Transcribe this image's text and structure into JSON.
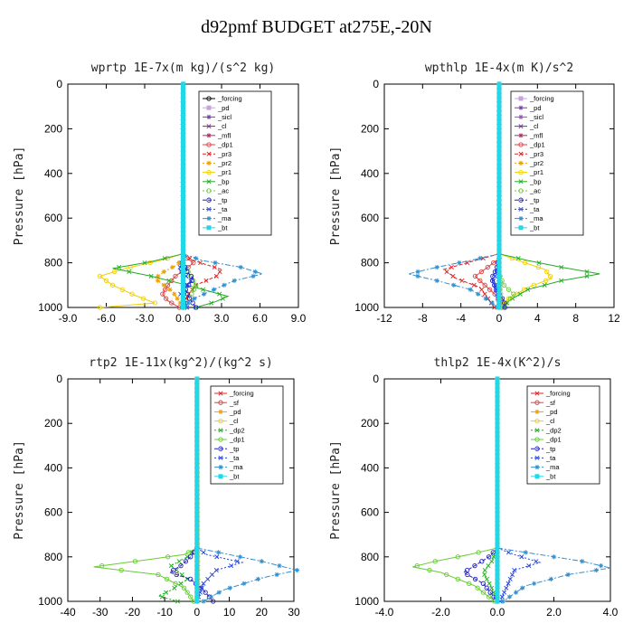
{
  "figure_title": "d92pmf  BUDGET at275E,-20N",
  "chart_data": [
    {
      "type": "line",
      "title": "wprtp  1E-7x(m kg)/(s^2 kg)",
      "ylabel": "Pressure [hPa]",
      "xlim": [
        -9,
        9
      ],
      "ylim": [
        1000,
        0
      ],
      "xticks": [
        "-9.0",
        "-6.0",
        "-3.0",
        "0.0",
        "3.0",
        "6.0",
        "9.0"
      ],
      "xtick_values": [
        -9,
        -6,
        -3,
        0,
        3,
        6,
        9
      ],
      "yticks": [
        "0",
        "200",
        "400",
        "600",
        "800",
        "1000"
      ],
      "ytick_values": [
        0,
        200,
        400,
        600,
        800,
        1000
      ],
      "series": [
        {
          "name": "_forcing",
          "color": "#000000",
          "dash": "",
          "marker": "circle",
          "x": [
            0,
            0
          ],
          "p": [
            0,
            1000
          ]
        },
        {
          "name": "_pd",
          "color": "#c9a3e0",
          "dash": "",
          "marker": "square",
          "x": [
            0,
            0
          ],
          "p": [
            0,
            1000
          ]
        },
        {
          "name": "_sicl",
          "color": "#7a3fb5",
          "dash": "",
          "marker": "star",
          "x": [
            0,
            0
          ],
          "p": [
            0,
            1000
          ]
        },
        {
          "name": "_cl",
          "color": "#7a2b8c",
          "dash": "",
          "marker": "cross",
          "x": [
            0,
            0
          ],
          "p": [
            0,
            1000
          ]
        },
        {
          "name": "_mfl",
          "color": "#b03060",
          "dash": "",
          "marker": "star",
          "x": [
            0,
            0
          ],
          "p": [
            0,
            1000
          ]
        },
        {
          "name": "_dp1",
          "color": "#e04040",
          "dash": "",
          "marker": "circle",
          "x": [
            0,
            0.3,
            0.8,
            0.4,
            -0.6,
            -1.2,
            -1.6,
            -1.2,
            -0.3
          ],
          "p": [
            760,
            780,
            800,
            820,
            860,
            900,
            940,
            970,
            1000
          ]
        },
        {
          "name": "_pr3",
          "color": "#e02020",
          "dash": "4,2",
          "marker": "cross",
          "x": [
            0,
            0.8,
            3.0,
            2.6,
            1.0,
            0.3,
            0
          ],
          "p": [
            760,
            790,
            830,
            860,
            900,
            950,
            1000
          ]
        },
        {
          "name": "_pr2",
          "color": "#f0a000",
          "dash": "2,2",
          "marker": "star",
          "x": [
            0,
            -0.5,
            -1.5,
            -2.2,
            -0.8,
            0
          ],
          "p": [
            780,
            810,
            840,
            870,
            930,
            1000
          ]
        },
        {
          "name": "_pr1",
          "color": "#f0d000",
          "dash": "",
          "marker": "circle",
          "x": [
            0,
            -1.8,
            -4.5,
            -6.5,
            -5.5,
            -3.8,
            -2.2,
            -6.5
          ],
          "p": [
            760,
            790,
            825,
            860,
            900,
            945,
            980,
            1000
          ]
        },
        {
          "name": "_bp",
          "color": "#22aa22",
          "dash": "",
          "marker": "cross",
          "x": [
            0,
            -2.5,
            -5.5,
            -2.5,
            0.3,
            2.5,
            3.5,
            2.5,
            1.0
          ],
          "p": [
            760,
            795,
            825,
            860,
            900,
            935,
            950,
            975,
            1000
          ]
        },
        {
          "name": "_ac",
          "color": "#66cc33",
          "dash": "2,2",
          "marker": "circle",
          "x": [
            0,
            0.5,
            1.0,
            0.5,
            0
          ],
          "p": [
            800,
            850,
            900,
            960,
            1000
          ]
        },
        {
          "name": "_tp",
          "color": "#2020c0",
          "dash": "4,2",
          "marker": "circle",
          "x": [
            0,
            0.3,
            0.8,
            0.2,
            0.5,
            1.0
          ],
          "p": [
            800,
            840,
            870,
            920,
            960,
            1000
          ]
        },
        {
          "name": "_ta",
          "color": "#2040e0",
          "dash": "2,2",
          "marker": "cross",
          "x": [
            0,
            -0.3,
            0.6,
            -0.2,
            0.3
          ],
          "p": [
            780,
            830,
            880,
            940,
            1000
          ]
        },
        {
          "name": "_ma",
          "color": "#3090d0",
          "dash": "6,2,2,2",
          "marker": "star",
          "x": [
            0,
            1.5,
            4.5,
            6.2,
            4.0,
            2.0,
            0.5,
            0.2
          ],
          "p": [
            760,
            790,
            820,
            850,
            880,
            930,
            970,
            1000
          ]
        },
        {
          "name": "_bt",
          "color": "#20d8e8",
          "dash": "",
          "marker": "square",
          "x": [
            0,
            0
          ],
          "p": [
            0,
            1000
          ]
        }
      ]
    },
    {
      "type": "line",
      "title": "wpthlp  1E-4x(m K)/s^2",
      "ylabel": "Pressure [hPa]",
      "xlim": [
        -12,
        12
      ],
      "ylim": [
        1000,
        0
      ],
      "xticks": [
        "-12",
        "-8",
        "-4",
        "0",
        "4",
        "8",
        "12"
      ],
      "xtick_values": [
        -12,
        -8,
        -4,
        0,
        4,
        8,
        12
      ],
      "yticks": [
        "0",
        "200",
        "400",
        "600",
        "800",
        "1000"
      ],
      "ytick_values": [
        0,
        200,
        400,
        600,
        800,
        1000
      ],
      "series": [
        {
          "name": "_forcing",
          "color": "#c9a3e0",
          "dash": "",
          "marker": "square",
          "x": [
            0,
            0
          ],
          "p": [
            0,
            1000
          ]
        },
        {
          "name": "_pd",
          "color": "#7a3fb5",
          "dash": "",
          "marker": "star",
          "x": [
            0,
            0
          ],
          "p": [
            0,
            1000
          ]
        },
        {
          "name": "_sicl",
          "color": "#9a50c0",
          "dash": "",
          "marker": "star",
          "x": [
            0,
            0
          ],
          "p": [
            0,
            1000
          ]
        },
        {
          "name": "_cl",
          "color": "#7a2b8c",
          "dash": "",
          "marker": "cross",
          "x": [
            0,
            0
          ],
          "p": [
            0,
            1000
          ]
        },
        {
          "name": "_mfl",
          "color": "#b03060",
          "dash": "",
          "marker": "star",
          "x": [
            0,
            0
          ],
          "p": [
            0,
            1000
          ]
        },
        {
          "name": "_dp1",
          "color": "#e04040",
          "dash": "",
          "marker": "circle",
          "x": [
            0,
            -1.2,
            -2.5,
            -1.5,
            -0.2,
            0.3
          ],
          "p": [
            780,
            820,
            860,
            900,
            950,
            1000
          ]
        },
        {
          "name": "_pr3",
          "color": "#e02020",
          "dash": "4,2",
          "marker": "cross",
          "x": [
            0,
            -2.5,
            -5.8,
            -4.5,
            -2.0,
            -0.5
          ],
          "p": [
            760,
            790,
            830,
            870,
            910,
            1000
          ]
        },
        {
          "name": "_pr2",
          "color": "#f0a000",
          "dash": "2,2",
          "marker": "star",
          "x": [
            0,
            0,
            0.2,
            0
          ],
          "p": [
            760,
            850,
            950,
            1000
          ]
        },
        {
          "name": "_pr1",
          "color": "#f0d000",
          "dash": "",
          "marker": "circle",
          "x": [
            0,
            2.0,
            4.8,
            5.5,
            3.0,
            1.0,
            0.2
          ],
          "p": [
            760,
            790,
            830,
            870,
            910,
            960,
            1000
          ]
        },
        {
          "name": "_bp",
          "color": "#22aa22",
          "dash": "",
          "marker": "cross",
          "x": [
            0,
            3.0,
            6.5,
            10.5,
            6.5,
            3.0,
            1.0,
            0.5
          ],
          "p": [
            760,
            790,
            820,
            850,
            880,
            920,
            970,
            1000
          ]
        },
        {
          "name": "_ac",
          "color": "#66cc33",
          "dash": "2,2",
          "marker": "circle",
          "x": [
            0,
            0.5,
            1.5,
            1.0,
            0.2
          ],
          "p": [
            850,
            900,
            940,
            970,
            1000
          ]
        },
        {
          "name": "_tp",
          "color": "#2020c0",
          "dash": "4,2",
          "marker": "circle",
          "x": [
            0,
            -0.3,
            -0.8,
            -0.3,
            0.5,
            0.6
          ],
          "p": [
            780,
            830,
            870,
            920,
            970,
            1000
          ]
        },
        {
          "name": "_ta",
          "color": "#2040e0",
          "dash": "2,2",
          "marker": "cross",
          "x": [
            0,
            -0.2,
            -0.6,
            -0.2,
            0
          ],
          "p": [
            780,
            830,
            880,
            940,
            1000
          ]
        },
        {
          "name": "_ma",
          "color": "#3090d0",
          "dash": "6,2,2,2",
          "marker": "star",
          "x": [
            0,
            -3.0,
            -6.5,
            -9.5,
            -6.5,
            -3.0,
            -1.0,
            -0.2
          ],
          "p": [
            760,
            790,
            820,
            850,
            880,
            920,
            970,
            1000
          ]
        },
        {
          "name": "_bt",
          "color": "#20d8e8",
          "dash": "",
          "marker": "square",
          "x": [
            0,
            0
          ],
          "p": [
            0,
            1000
          ]
        }
      ]
    },
    {
      "type": "line",
      "title": "rtp2  1E-11x(kg^2)/(kg^2 s)",
      "ylabel": "Pressure [hPa]",
      "xlim": [
        -40,
        30
      ],
      "ylim": [
        1000,
        0
      ],
      "xticks": [
        "-40",
        "-30",
        "-20",
        "-10",
        "0",
        "10",
        "20",
        "30"
      ],
      "xtick_values": [
        -40,
        -30,
        -20,
        -10,
        0,
        10,
        20,
        30
      ],
      "yticks": [
        "0",
        "200",
        "400",
        "600",
        "800",
        "1000"
      ],
      "ytick_values": [
        0,
        200,
        400,
        600,
        800,
        1000
      ],
      "series": [
        {
          "name": "_forcing",
          "color": "#e02020",
          "dash": "",
          "marker": "cross",
          "x": [
            0,
            0
          ],
          "p": [
            0,
            1000
          ]
        },
        {
          "name": "_sf",
          "color": "#e04040",
          "dash": "",
          "marker": "circle",
          "x": [
            0,
            0
          ],
          "p": [
            0,
            1000
          ]
        },
        {
          "name": "_pd",
          "color": "#f0a000",
          "dash": "",
          "marker": "star",
          "x": [
            0,
            0.3,
            0
          ],
          "p": [
            0,
            950,
            1000
          ]
        },
        {
          "name": "_cl",
          "color": "#f0d000",
          "dash": "",
          "marker": "circle",
          "x": [
            0,
            0
          ],
          "p": [
            0,
            1000
          ]
        },
        {
          "name": "_dp2",
          "color": "#22aa22",
          "dash": "2,2",
          "marker": "cross",
          "x": [
            0,
            -3.0,
            -8.0,
            -3.0,
            -8.0,
            -12.0,
            -6.0
          ],
          "p": [
            760,
            800,
            840,
            900,
            950,
            975,
            1000
          ]
        },
        {
          "name": "_dp1",
          "color": "#66cc33",
          "dash": "",
          "marker": "circle",
          "x": [
            0,
            -4.0,
            -14.0,
            -32.0,
            -12.0,
            -4.0,
            -1.0
          ],
          "p": [
            760,
            790,
            810,
            845,
            880,
            940,
            1000
          ]
        },
        {
          "name": "_tp",
          "color": "#2020c0",
          "dash": "4,2",
          "marker": "circle",
          "x": [
            0,
            -2.0,
            -5.0,
            -8.5,
            -2.0,
            2.0,
            5.0
          ],
          "p": [
            760,
            800,
            840,
            870,
            900,
            950,
            1000
          ]
        },
        {
          "name": "_ta",
          "color": "#2040e0",
          "dash": "2,2",
          "marker": "cross",
          "x": [
            0,
            3.0,
            14.0,
            6.0,
            2.0,
            0
          ],
          "p": [
            760,
            790,
            825,
            860,
            920,
            1000
          ]
        },
        {
          "name": "_ma",
          "color": "#3090d0",
          "dash": "6,2,2,2",
          "marker": "star",
          "x": [
            0,
            10.0,
            20.0,
            31.0,
            20.0,
            8.0,
            2.0
          ],
          "p": [
            760,
            790,
            820,
            860,
            895,
            950,
            1000
          ]
        },
        {
          "name": "_bt",
          "color": "#20d8e8",
          "dash": "",
          "marker": "square",
          "x": [
            0,
            0
          ],
          "p": [
            0,
            1000
          ]
        }
      ]
    },
    {
      "type": "line",
      "title": "thlp2  1E-4x(K^2)/s",
      "ylabel": "Pressure [hPa]",
      "xlim": [
        -4,
        4
      ],
      "ylim": [
        1000,
        0
      ],
      "xticks": [
        "-4.0",
        "-2.0",
        "0.0",
        "2.0",
        "4.0"
      ],
      "xtick_values": [
        -4,
        -2,
        0,
        2,
        4
      ],
      "yticks": [
        "0",
        "200",
        "400",
        "600",
        "800",
        "1000"
      ],
      "ytick_values": [
        0,
        200,
        400,
        600,
        800,
        1000
      ],
      "series": [
        {
          "name": "_forcing",
          "color": "#e02020",
          "dash": "",
          "marker": "cross",
          "x": [
            0,
            0
          ],
          "p": [
            0,
            1000
          ]
        },
        {
          "name": "_sf",
          "color": "#e04040",
          "dash": "",
          "marker": "circle",
          "x": [
            0,
            0
          ],
          "p": [
            0,
            1000
          ]
        },
        {
          "name": "_pd",
          "color": "#f0a000",
          "dash": "",
          "marker": "star",
          "x": [
            0,
            0
          ],
          "p": [
            0,
            1000
          ]
        },
        {
          "name": "_cl",
          "color": "#f0d000",
          "dash": "",
          "marker": "circle",
          "x": [
            0,
            0
          ],
          "p": [
            0,
            1000
          ]
        },
        {
          "name": "_dp2",
          "color": "#22aa22",
          "dash": "2,2",
          "marker": "cross",
          "x": [
            0,
            -0.2,
            -0.5,
            -0.2,
            0
          ],
          "p": [
            760,
            820,
            870,
            940,
            1000
          ]
        },
        {
          "name": "_dp1",
          "color": "#66cc33",
          "dash": "",
          "marker": "circle",
          "x": [
            0,
            -1.0,
            -2.2,
            -3.0,
            -2.0,
            -0.8,
            -0.1
          ],
          "p": [
            760,
            790,
            820,
            845,
            870,
            930,
            1000
          ]
        },
        {
          "name": "_tp",
          "color": "#2020c0",
          "dash": "4,2",
          "marker": "circle",
          "x": [
            0,
            -0.3,
            -0.8,
            -1.2,
            -0.5,
            0
          ],
          "p": [
            760,
            800,
            840,
            870,
            920,
            1000
          ]
        },
        {
          "name": "_ta",
          "color": "#2040e0",
          "dash": "2,2",
          "marker": "cross",
          "x": [
            0,
            0.6,
            1.5,
            0.6,
            0.1
          ],
          "p": [
            760,
            790,
            825,
            860,
            1000
          ]
        },
        {
          "name": "_ma",
          "color": "#3090d0",
          "dash": "6,2,2,2",
          "marker": "star",
          "x": [
            0,
            1.5,
            3.0,
            4.0,
            2.5,
            1.0,
            0.2
          ],
          "p": [
            760,
            790,
            820,
            850,
            880,
            930,
            1000
          ]
        },
        {
          "name": "_bt",
          "color": "#20d8e8",
          "dash": "",
          "marker": "square",
          "x": [
            0,
            0
          ],
          "p": [
            0,
            1000
          ]
        }
      ]
    }
  ]
}
